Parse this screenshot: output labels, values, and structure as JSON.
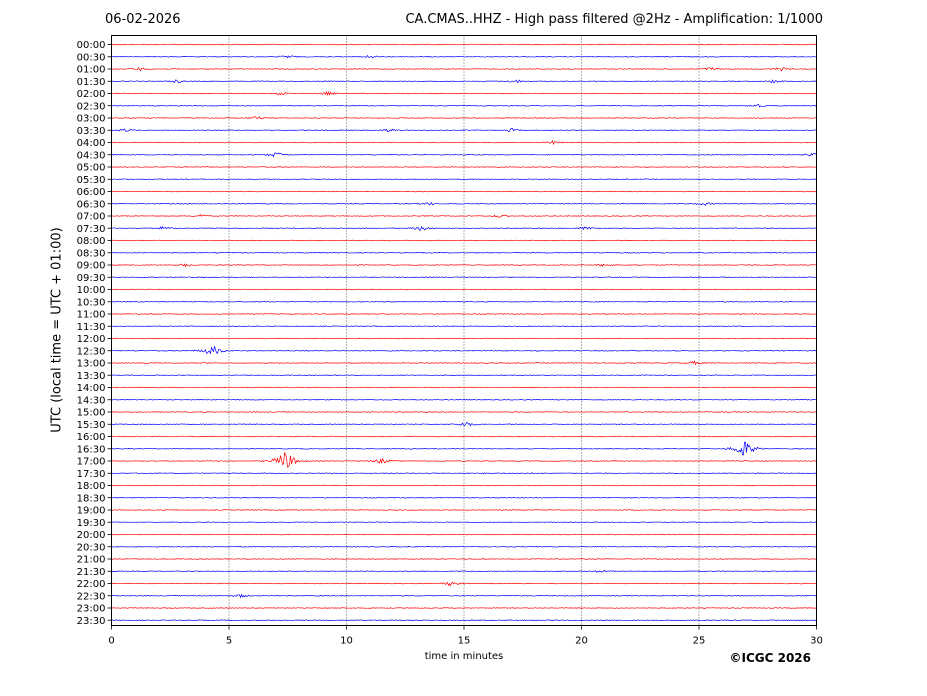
{
  "header": {
    "date": "06-02-2026",
    "title": "CA.CMAS..HHZ - High pass filtered @2Hz - Amplification: 1/1000"
  },
  "footer": {
    "copyright": "©ICGC 2026"
  },
  "chart_data": {
    "type": "line",
    "subtype": "seismogram-helicorder",
    "xlabel": "time in minutes",
    "ylabel": "UTC (local time = UTC + 01:00)",
    "xlim": [
      0,
      30
    ],
    "x_ticks": [
      "0",
      "5",
      "10",
      "15",
      "20",
      "25",
      "30"
    ],
    "grid": "vertical dotted every 5 minutes",
    "colors": {
      "odd_trace": "#ff0000",
      "even_trace": "#0000ff"
    },
    "rows": [
      "00:00",
      "00:30",
      "01:00",
      "01:30",
      "02:00",
      "02:30",
      "03:00",
      "03:30",
      "04:00",
      "04:30",
      "05:00",
      "05:30",
      "06:00",
      "06:30",
      "07:00",
      "07:30",
      "08:00",
      "08:30",
      "09:00",
      "09:30",
      "10:00",
      "10:30",
      "11:00",
      "11:30",
      "12:00",
      "12:30",
      "13:00",
      "13:30",
      "14:00",
      "14:30",
      "15:00",
      "15:30",
      "16:00",
      "16:30",
      "17:00",
      "17:30",
      "18:00",
      "18:30",
      "19:00",
      "19:30",
      "20:00",
      "20:30",
      "21:00",
      "21:30",
      "22:00",
      "22:30",
      "23:00",
      "23:30"
    ],
    "events": [
      {
        "row": "00:30",
        "minute": 7.5,
        "amplitude": 2
      },
      {
        "row": "00:30",
        "minute": 11.0,
        "amplitude": 2
      },
      {
        "row": "01:00",
        "minute": 1.2,
        "amplitude": 2
      },
      {
        "row": "01:00",
        "minute": 25.5,
        "amplitude": 2
      },
      {
        "row": "01:00",
        "minute": 28.5,
        "amplitude": 2
      },
      {
        "row": "01:30",
        "minute": 2.8,
        "amplitude": 2
      },
      {
        "row": "01:30",
        "minute": 17.2,
        "amplitude": 2
      },
      {
        "row": "01:30",
        "minute": 28.2,
        "amplitude": 2
      },
      {
        "row": "02:00",
        "minute": 7.2,
        "amplitude": 2
      },
      {
        "row": "02:00",
        "minute": 9.2,
        "amplitude": 2
      },
      {
        "row": "02:30",
        "minute": 27.5,
        "amplitude": 2
      },
      {
        "row": "03:00",
        "minute": 6.2,
        "amplitude": 2
      },
      {
        "row": "03:30",
        "minute": 0.6,
        "amplitude": 2
      },
      {
        "row": "03:30",
        "minute": 11.8,
        "amplitude": 2
      },
      {
        "row": "03:30",
        "minute": 17.0,
        "amplitude": 2
      },
      {
        "row": "04:00",
        "minute": 18.8,
        "amplitude": 2
      },
      {
        "row": "04:30",
        "minute": 7.0,
        "amplitude": 3
      },
      {
        "row": "04:30",
        "minute": 29.8,
        "amplitude": 2
      },
      {
        "row": "06:30",
        "minute": 13.5,
        "amplitude": 2
      },
      {
        "row": "06:30",
        "minute": 25.2,
        "amplitude": 2
      },
      {
        "row": "07:00",
        "minute": 3.8,
        "amplitude": 2
      },
      {
        "row": "07:00",
        "minute": 16.5,
        "amplitude": 2
      },
      {
        "row": "07:30",
        "minute": 2.2,
        "amplitude": 2
      },
      {
        "row": "07:30",
        "minute": 13.2,
        "amplitude": 3
      },
      {
        "row": "07:30",
        "minute": 20.2,
        "amplitude": 2
      },
      {
        "row": "09:00",
        "minute": 3.2,
        "amplitude": 2
      },
      {
        "row": "09:00",
        "minute": 21.0,
        "amplitude": 2
      },
      {
        "row": "12:30",
        "minute": 4.3,
        "amplitude": 6
      },
      {
        "row": "13:00",
        "minute": 24.8,
        "amplitude": 2
      },
      {
        "row": "15:30",
        "minute": 15.1,
        "amplitude": 3
      },
      {
        "row": "16:30",
        "minute": 26.9,
        "amplitude": 10
      },
      {
        "row": "17:00",
        "minute": 7.4,
        "amplitude": 11
      },
      {
        "row": "17:00",
        "minute": 11.5,
        "amplitude": 3
      },
      {
        "row": "21:30",
        "minute": 20.8,
        "amplitude": 2
      },
      {
        "row": "22:00",
        "minute": 14.5,
        "amplitude": 3
      },
      {
        "row": "22:30",
        "minute": 5.5,
        "amplitude": 2
      }
    ]
  }
}
